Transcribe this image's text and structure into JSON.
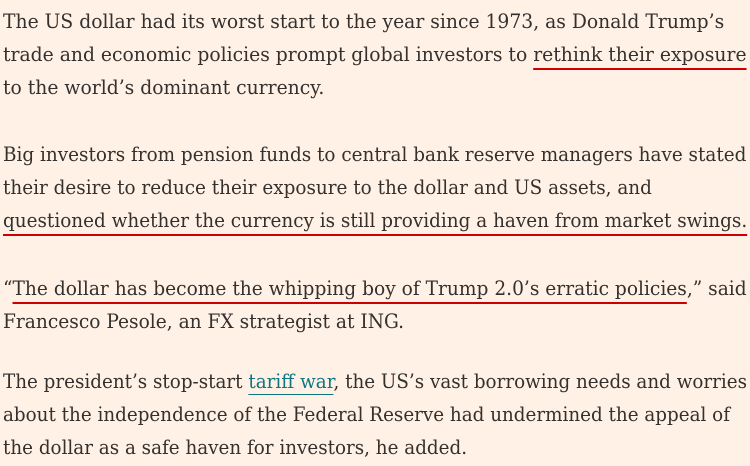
{
  "article": {
    "paragraphs": [
      {
        "line1": "The US dollar had its worst start to the year since 1973, as Donald Trump’s",
        "line2_pre": "trade and economic policies prompt global investors to ",
        "line2_link": "rethink their exposure",
        "line3": "to the world’s dominant currency."
      },
      {
        "line1": "Big investors from pension funds to central bank reserve managers have stated",
        "line2": "their desire to reduce their exposure to the dollar and US assets, and",
        "line3_link": "questioned whether the currency is still providing a haven from market swings."
      },
      {
        "line1_pre": "“",
        "line1_link": "The dollar has become the whipping boy of Trump 2.0’s erratic policies",
        "line1_post": ",” said",
        "line2": "Francesco Pesole, an FX strategist at ING."
      },
      {
        "line1_pre": "The president’s stop-start ",
        "line1_link": "tariff war",
        "line1_post": ", the US’s vast borrowing needs and worries",
        "line2": "about the independence of the Federal Reserve had undermined the appeal of",
        "line3": "the dollar as a safe haven for investors, he added."
      }
    ]
  },
  "colors": {
    "background": "#FFF1E5",
    "text": "#33302E",
    "highlight_underline": "#CC0000",
    "link": "#0D7680"
  }
}
